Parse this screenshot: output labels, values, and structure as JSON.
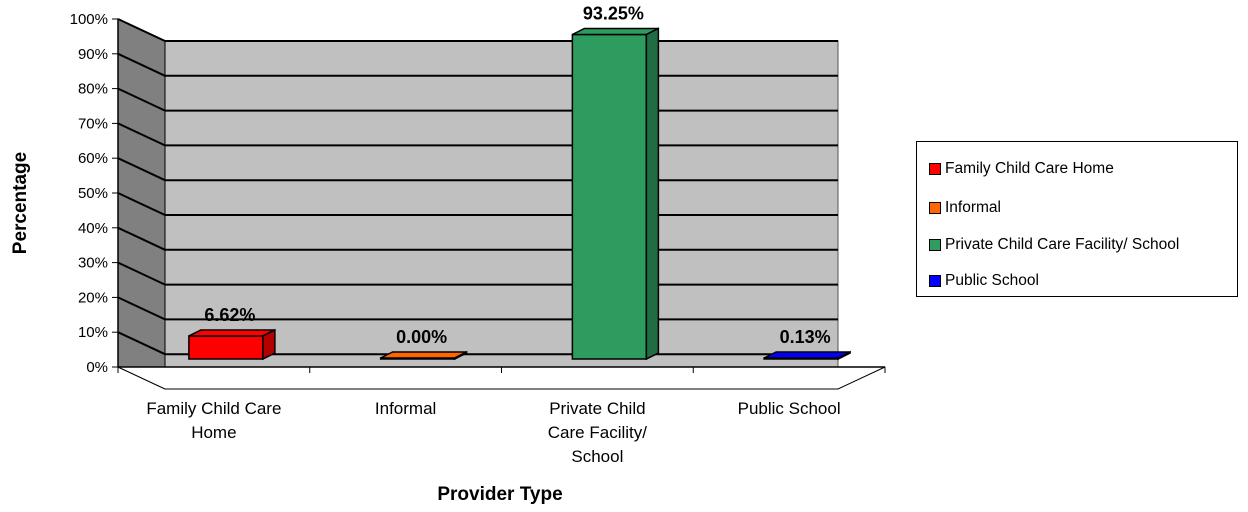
{
  "chart_data": {
    "type": "bar",
    "title": "",
    "xlabel": "Provider Type",
    "ylabel": "Percentage",
    "categories": [
      "Family Child Care Home",
      "Informal",
      "Private Child Care Facility/ School",
      "Public School"
    ],
    "category_label_lines": [
      [
        "Family Child Care",
        "Home"
      ],
      [
        "Informal"
      ],
      [
        "Private Child",
        "Care Facility/",
        "School"
      ],
      [
        "Public School"
      ]
    ],
    "values": [
      6.62,
      0.0,
      93.25,
      0.13
    ],
    "data_labels": [
      "6.62%",
      "0.00%",
      "93.25%",
      "0.13%"
    ],
    "colors": [
      "#ff0000",
      "#ff6600",
      "#2e9b5f",
      "#0000ff"
    ],
    "ylim": [
      0,
      100
    ],
    "yticks": [
      "0%",
      "10%",
      "20%",
      "30%",
      "40%",
      "50%",
      "60%",
      "70%",
      "80%",
      "90%",
      "100%"
    ],
    "grid": true,
    "three_d": true,
    "legend": {
      "position": "right",
      "entries": [
        "Family Child Care Home",
        "Informal",
        "Private Child Care Facility/ School",
        "Public School"
      ]
    }
  }
}
